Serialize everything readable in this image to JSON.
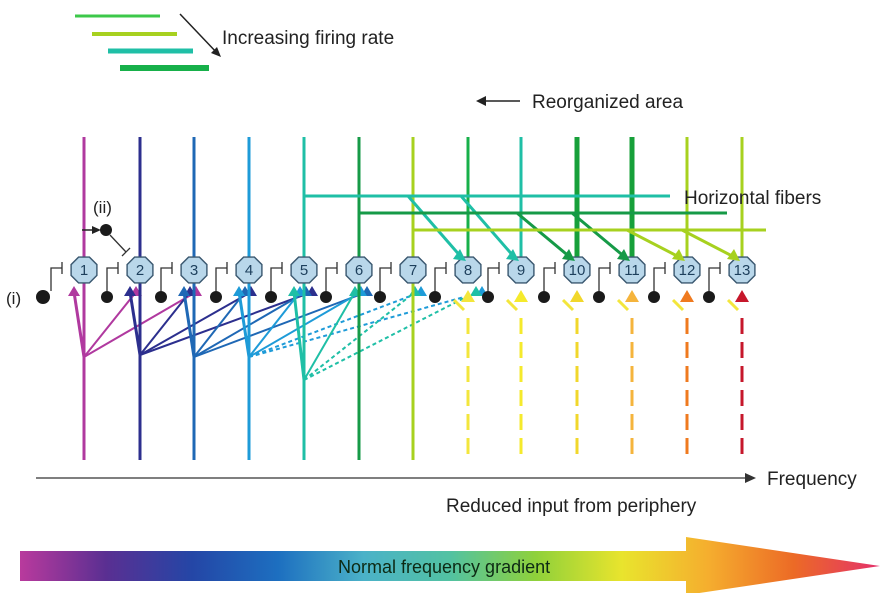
{
  "legend": {
    "firing_rate_label": "Increasing firing rate",
    "firing_rate_colors": [
      "#3cc84a",
      "#a7d11f",
      "#1fbfa6",
      "#17b04a"
    ]
  },
  "labels": {
    "reorganized_area": "Reorganized area",
    "horizontal_fibers": "Horizontal fibers",
    "frequency": "Frequency",
    "reduced_input": "Reduced input from periphery",
    "gradient": "Normal frequency gradient",
    "marker_i": "(i)",
    "marker_ii": "(ii)"
  },
  "neurons": [
    {
      "label": "1",
      "color": "#b0399f",
      "dashed": false
    },
    {
      "label": "2",
      "color": "#2c2f8e",
      "dashed": false
    },
    {
      "label": "3",
      "color": "#1f68b5",
      "dashed": false
    },
    {
      "label": "4",
      "color": "#1e9bd8",
      "dashed": false
    },
    {
      "label": "5",
      "color": "#1fbfa6",
      "dashed": false
    },
    {
      "label": "6",
      "color": "#169a47",
      "dashed": false
    },
    {
      "label": "7",
      "color": "#a7d11f",
      "dashed": false
    },
    {
      "label": "8",
      "color": "#f3e63c",
      "dashed": true
    },
    {
      "label": "9",
      "color": "#f5ea2c",
      "dashed": true
    },
    {
      "label": "10",
      "color": "#f1d72b",
      "dashed": true
    },
    {
      "label": "11",
      "color": "#f5b43c",
      "dashed": true
    },
    {
      "label": "12",
      "color": "#ef7a1f",
      "dashed": true
    },
    {
      "label": "13",
      "color": "#c6172b",
      "dashed": true
    }
  ],
  "gradient_colors": [
    "#b93a9d",
    "#5a2f92",
    "#2446a6",
    "#1d6fc0",
    "#4bb2c8",
    "#52c2a2",
    "#8fd13a",
    "#e9e42d",
    "#f5ae2e",
    "#ec6a26",
    "#e4316b"
  ]
}
